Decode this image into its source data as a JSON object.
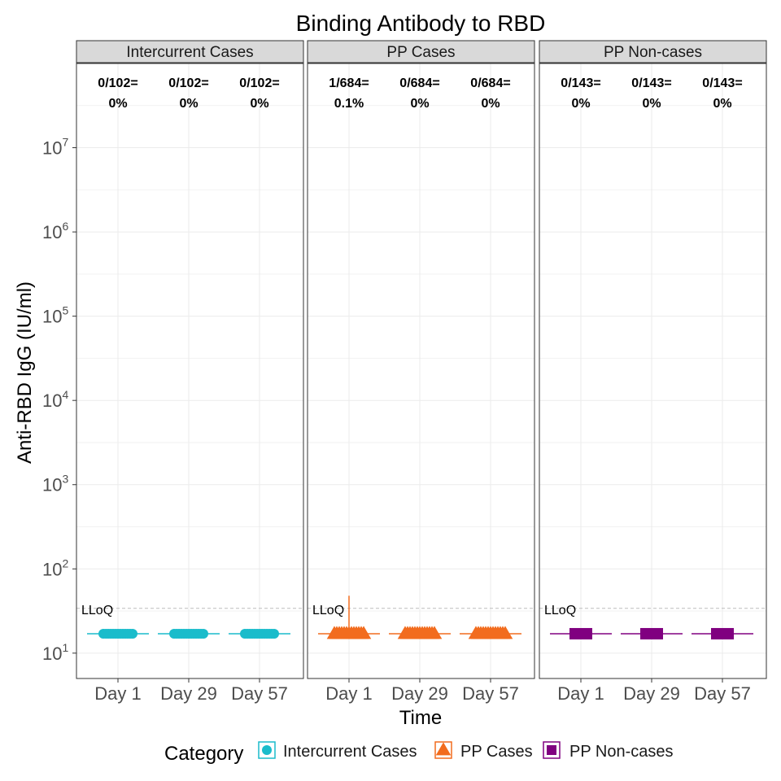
{
  "chart_data": {
    "type": "box",
    "title": "Binding Antibody to RBD",
    "xlabel": "Time",
    "ylabel": "Anti-RBD IgG (IU/ml)",
    "y_scale": "log10",
    "ylim": [
      5,
      100000000
    ],
    "y_ticks": [
      {
        "value": 10,
        "base": "10",
        "exp": "1"
      },
      {
        "value": 100,
        "base": "10",
        "exp": "2"
      },
      {
        "value": 1000,
        "base": "10",
        "exp": "3"
      },
      {
        "value": 10000,
        "base": "10",
        "exp": "4"
      },
      {
        "value": 100000,
        "base": "10",
        "exp": "5"
      },
      {
        "value": 1000000,
        "base": "10",
        "exp": "6"
      },
      {
        "value": 10000000,
        "base": "10",
        "exp": "7"
      }
    ],
    "categories": [
      "Day 1",
      "Day 29",
      "Day 57"
    ],
    "lloq": {
      "value": 34,
      "label": "LLoQ"
    },
    "grid": true,
    "legend": {
      "title": "Category",
      "position": "bottom",
      "entries": [
        {
          "label": "Intercurrent Cases",
          "color": "#1ABCCB",
          "shape": "circle"
        },
        {
          "label": "PP Cases",
          "color": "#F26C1E",
          "shape": "triangle"
        },
        {
          "label": "PP Non-cases",
          "color": "#800080",
          "shape": "square"
        }
      ]
    },
    "panels": [
      {
        "name": "Intercurrent Cases",
        "color": "#1ABCCB",
        "shape": "circle",
        "annotations": [
          {
            "line1": "0/102=",
            "line2": "0%"
          },
          {
            "line1": "0/102=",
            "line2": "0%"
          },
          {
            "line1": "0/102=",
            "line2": "0%"
          }
        ],
        "values": [
          17,
          17,
          17
        ],
        "max": [
          17,
          17,
          17
        ]
      },
      {
        "name": "PP Cases",
        "color": "#F26C1E",
        "shape": "triangle",
        "annotations": [
          {
            "line1": "1/684=",
            "line2": "0.1%"
          },
          {
            "line1": "0/684=",
            "line2": "0%"
          },
          {
            "line1": "0/684=",
            "line2": "0%"
          }
        ],
        "values": [
          17,
          17,
          17
        ],
        "max": [
          48,
          20,
          20
        ]
      },
      {
        "name": "PP Non-cases",
        "color": "#800080",
        "shape": "square",
        "annotations": [
          {
            "line1": "0/143=",
            "line2": "0%"
          },
          {
            "line1": "0/143=",
            "line2": "0%"
          },
          {
            "line1": "0/143=",
            "line2": "0%"
          }
        ],
        "values": [
          17,
          17,
          17
        ],
        "max": [
          17,
          17,
          17
        ]
      }
    ]
  }
}
